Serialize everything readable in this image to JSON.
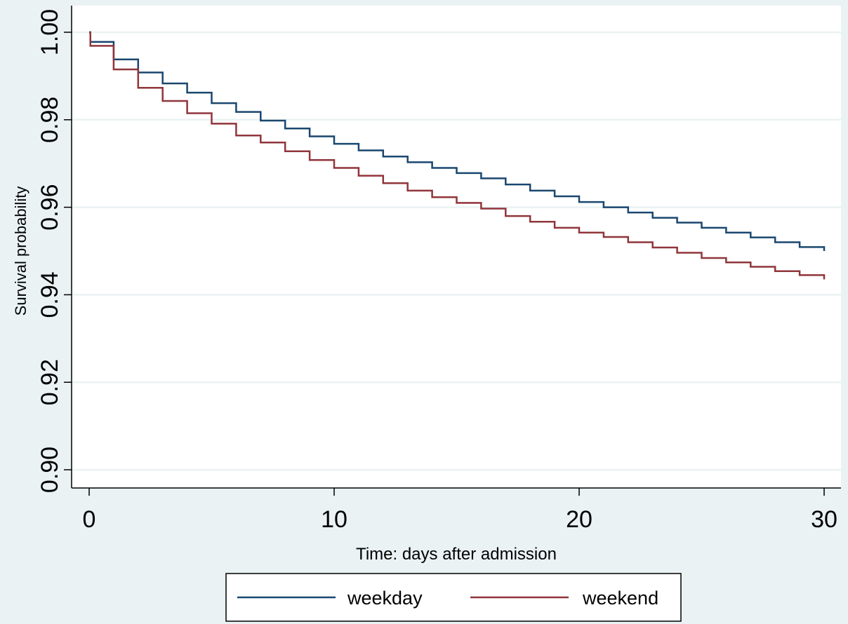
{
  "chart_data": {
    "type": "line",
    "title": "",
    "xlabel": "Time: days after admission",
    "ylabel": "Survival probability",
    "xlim": [
      0,
      30
    ],
    "ylim": [
      0.9,
      1.0
    ],
    "xticks": [
      0,
      10,
      20,
      30
    ],
    "xtick_labels": [
      "0",
      "10",
      "20",
      "30"
    ],
    "yticks": [
      0.9,
      0.92,
      0.94,
      0.96,
      0.98,
      1.0
    ],
    "ytick_labels": [
      "0.90",
      "0.92",
      "0.94",
      "0.96",
      "0.98",
      "1.00"
    ],
    "grid": true,
    "legend_position": "bottom",
    "step": true,
    "series": [
      {
        "name": "weekday",
        "color": "#1a476f",
        "x": [
          0,
          0.05,
          1,
          2,
          3,
          4,
          5,
          6,
          7,
          8,
          9,
          10,
          11,
          12,
          13,
          14,
          15,
          16,
          17,
          18,
          19,
          20,
          21,
          22,
          23,
          24,
          25,
          26,
          27,
          28,
          29,
          30
        ],
        "y": [
          1.0,
          0.9978,
          0.9938,
          0.9908,
          0.9883,
          0.9862,
          0.9838,
          0.9818,
          0.9798,
          0.978,
          0.9762,
          0.9745,
          0.973,
          0.9716,
          0.9703,
          0.969,
          0.9678,
          0.9666,
          0.9652,
          0.9638,
          0.9625,
          0.9612,
          0.96,
          0.9588,
          0.9576,
          0.9565,
          0.9553,
          0.9542,
          0.9531,
          0.952,
          0.9509,
          0.95
        ]
      },
      {
        "name": "weekend",
        "color": "#90353b",
        "x": [
          0,
          0.05,
          1,
          2,
          3,
          4,
          5,
          6,
          7,
          8,
          9,
          10,
          11,
          12,
          13,
          14,
          15,
          16,
          17,
          18,
          19,
          20,
          21,
          22,
          23,
          24,
          25,
          26,
          27,
          28,
          29,
          30
        ],
        "y": [
          1.0,
          0.9969,
          0.9915,
          0.9873,
          0.9843,
          0.9815,
          0.9791,
          0.9764,
          0.9748,
          0.9728,
          0.9708,
          0.969,
          0.9672,
          0.9655,
          0.9638,
          0.9623,
          0.961,
          0.9597,
          0.958,
          0.9567,
          0.9553,
          0.9542,
          0.9532,
          0.952,
          0.9508,
          0.9496,
          0.9484,
          0.9474,
          0.9464,
          0.9454,
          0.9445,
          0.9435
        ]
      }
    ]
  }
}
